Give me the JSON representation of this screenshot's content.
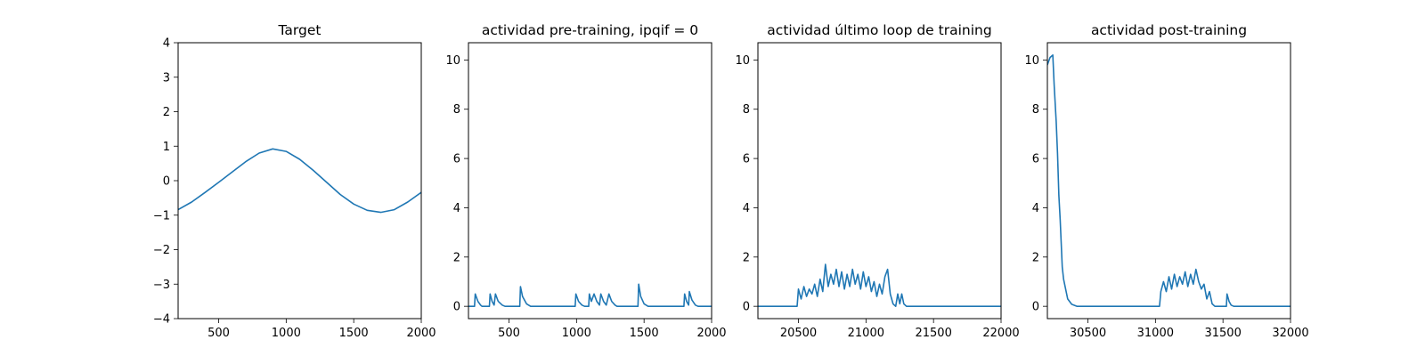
{
  "chart_data": [
    {
      "type": "line",
      "title": "Target",
      "xlim": [
        200,
        2000
      ],
      "ylim": [
        -4,
        4
      ],
      "xticks": [
        500,
        1000,
        1500,
        2000
      ],
      "yticks": [
        -4,
        -3,
        -2,
        -1,
        0,
        1,
        2,
        3,
        4
      ],
      "series": [
        {
          "values": [
            [
              200,
              -0.84
            ],
            [
              300,
              -0.62
            ],
            [
              400,
              -0.34
            ],
            [
              500,
              -0.05
            ],
            [
              600,
              0.25
            ],
            [
              700,
              0.55
            ],
            [
              800,
              0.8
            ],
            [
              900,
              0.92
            ],
            [
              1000,
              0.85
            ],
            [
              1100,
              0.62
            ],
            [
              1200,
              0.3
            ],
            [
              1300,
              -0.05
            ],
            [
              1400,
              -0.4
            ],
            [
              1500,
              -0.68
            ],
            [
              1600,
              -0.86
            ],
            [
              1700,
              -0.92
            ],
            [
              1800,
              -0.84
            ],
            [
              1900,
              -0.62
            ],
            [
              2000,
              -0.34
            ]
          ]
        }
      ]
    },
    {
      "type": "line",
      "title": "actividad pre-training, ipqif = 0",
      "xlim": [
        200,
        2000
      ],
      "ylim": [
        -0.5,
        10.7
      ],
      "xticks": [
        500,
        1000,
        1500,
        2000
      ],
      "yticks": [
        0,
        2,
        4,
        6,
        8,
        10
      ],
      "series": [
        {
          "values": [
            [
              200,
              0
            ],
            [
              245,
              0
            ],
            [
              250,
              0.5
            ],
            [
              270,
              0.2
            ],
            [
              290,
              0.05
            ],
            [
              300,
              0
            ],
            [
              355,
              0
            ],
            [
              360,
              0.5
            ],
            [
              375,
              0.2
            ],
            [
              390,
              0.05
            ],
            [
              400,
              0.5
            ],
            [
              420,
              0.2
            ],
            [
              450,
              0.05
            ],
            [
              470,
              0
            ],
            [
              580,
              0
            ],
            [
              585,
              0.8
            ],
            [
              600,
              0.4
            ],
            [
              630,
              0.1
            ],
            [
              660,
              0
            ],
            [
              990,
              0
            ],
            [
              995,
              0.5
            ],
            [
              1015,
              0.2
            ],
            [
              1040,
              0.05
            ],
            [
              1060,
              0
            ],
            [
              1090,
              0
            ],
            [
              1095,
              0.5
            ],
            [
              1110,
              0.2
            ],
            [
              1130,
              0.5
            ],
            [
              1150,
              0.2
            ],
            [
              1170,
              0.05
            ],
            [
              1180,
              0.5
            ],
            [
              1200,
              0.2
            ],
            [
              1220,
              0.05
            ],
            [
              1240,
              0.5
            ],
            [
              1260,
              0.2
            ],
            [
              1285,
              0.05
            ],
            [
              1300,
              0
            ],
            [
              1455,
              0
            ],
            [
              1460,
              0.9
            ],
            [
              1475,
              0.4
            ],
            [
              1500,
              0.1
            ],
            [
              1530,
              0
            ],
            [
              1795,
              0
            ],
            [
              1800,
              0.5
            ],
            [
              1815,
              0.2
            ],
            [
              1830,
              0.05
            ],
            [
              1835,
              0.6
            ],
            [
              1855,
              0.25
            ],
            [
              1880,
              0.05
            ],
            [
              1900,
              0
            ],
            [
              2000,
              0
            ]
          ]
        }
      ]
    },
    {
      "type": "line",
      "title": "actividad último loop de training",
      "xlim": [
        20200,
        22000
      ],
      "ylim": [
        -0.5,
        10.7
      ],
      "xticks": [
        20500,
        21000,
        21500,
        22000
      ],
      "yticks": [
        0,
        2,
        4,
        6,
        8,
        10
      ],
      "series": [
        {
          "values": [
            [
              20200,
              0
            ],
            [
              20490,
              0
            ],
            [
              20500,
              0.7
            ],
            [
              20520,
              0.3
            ],
            [
              20540,
              0.8
            ],
            [
              20560,
              0.4
            ],
            [
              20580,
              0.7
            ],
            [
              20600,
              0.5
            ],
            [
              20620,
              0.9
            ],
            [
              20640,
              0.4
            ],
            [
              20660,
              1.1
            ],
            [
              20680,
              0.6
            ],
            [
              20700,
              1.7
            ],
            [
              20720,
              0.8
            ],
            [
              20740,
              1.3
            ],
            [
              20760,
              0.9
            ],
            [
              20780,
              1.5
            ],
            [
              20800,
              0.8
            ],
            [
              20820,
              1.4
            ],
            [
              20840,
              0.7
            ],
            [
              20860,
              1.3
            ],
            [
              20880,
              0.8
            ],
            [
              20900,
              1.5
            ],
            [
              20920,
              0.9
            ],
            [
              20940,
              1.3
            ],
            [
              20960,
              0.7
            ],
            [
              20980,
              1.4
            ],
            [
              21000,
              0.8
            ],
            [
              21020,
              1.2
            ],
            [
              21040,
              0.6
            ],
            [
              21060,
              1.0
            ],
            [
              21080,
              0.4
            ],
            [
              21100,
              0.9
            ],
            [
              21120,
              0.5
            ],
            [
              21140,
              1.2
            ],
            [
              21160,
              1.5
            ],
            [
              21180,
              0.5
            ],
            [
              21200,
              0.1
            ],
            [
              21220,
              0
            ],
            [
              21235,
              0.5
            ],
            [
              21250,
              0.1
            ],
            [
              21265,
              0.5
            ],
            [
              21280,
              0.1
            ],
            [
              21300,
              0
            ],
            [
              22000,
              0
            ]
          ]
        }
      ]
    },
    {
      "type": "line",
      "title": "actividad post-training",
      "xlim": [
        30200,
        32000
      ],
      "ylim": [
        -0.5,
        10.7
      ],
      "xticks": [
        30500,
        31000,
        31500,
        32000
      ],
      "yticks": [
        0,
        2,
        4,
        6,
        8,
        10
      ],
      "series": [
        {
          "values": [
            [
              30200,
              9.8
            ],
            [
              30220,
              10.1
            ],
            [
              30240,
              10.2
            ],
            [
              30250,
              9.0
            ],
            [
              30265,
              7.5
            ],
            [
              30275,
              6.2
            ],
            [
              30285,
              4.5
            ],
            [
              30295,
              3.5
            ],
            [
              30310,
              1.6
            ],
            [
              30320,
              1.1
            ],
            [
              30335,
              0.7
            ],
            [
              30350,
              0.3
            ],
            [
              30380,
              0.08
            ],
            [
              30420,
              0
            ],
            [
              31030,
              0
            ],
            [
              31040,
              0.6
            ],
            [
              31060,
              1.0
            ],
            [
              31080,
              0.6
            ],
            [
              31100,
              1.2
            ],
            [
              31120,
              0.7
            ],
            [
              31140,
              1.3
            ],
            [
              31160,
              0.8
            ],
            [
              31180,
              1.2
            ],
            [
              31200,
              0.9
            ],
            [
              31220,
              1.4
            ],
            [
              31240,
              0.8
            ],
            [
              31260,
              1.3
            ],
            [
              31280,
              0.9
            ],
            [
              31300,
              1.5
            ],
            [
              31320,
              1.0
            ],
            [
              31340,
              0.7
            ],
            [
              31360,
              0.9
            ],
            [
              31380,
              0.3
            ],
            [
              31400,
              0.6
            ],
            [
              31420,
              0.1
            ],
            [
              31440,
              0
            ],
            [
              31525,
              0
            ],
            [
              31530,
              0.5
            ],
            [
              31545,
              0.2
            ],
            [
              31560,
              0.05
            ],
            [
              31580,
              0
            ],
            [
              32000,
              0
            ]
          ]
        }
      ]
    }
  ],
  "colors": {
    "series": "#1f77b4"
  }
}
